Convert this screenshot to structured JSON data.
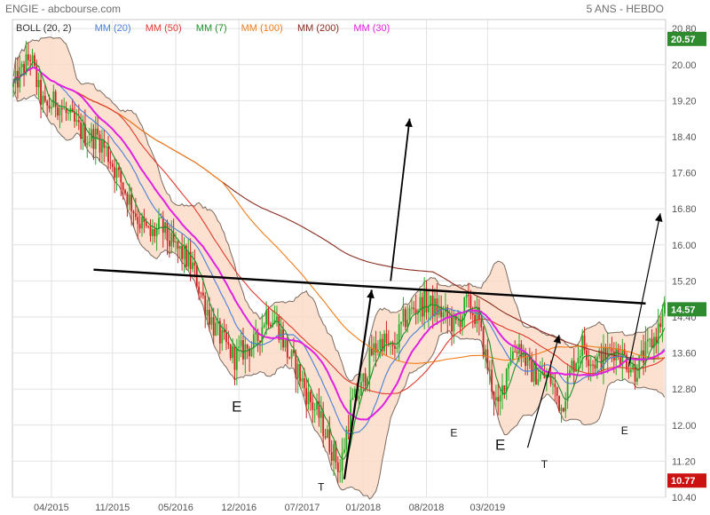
{
  "header": {
    "title": "ENGIE - abcbourse.com",
    "period": "5 ANS - HEBDO"
  },
  "legend": [
    {
      "label": "BOLL (20, 2)",
      "color": "#333333"
    },
    {
      "label": "MM (20)",
      "color": "#4a7fd6"
    },
    {
      "label": "MM (50)",
      "color": "#e0392b"
    },
    {
      "label": "MM (7)",
      "color": "#1e8f2a"
    },
    {
      "label": "MM (100)",
      "color": "#f07d1a"
    },
    {
      "label": "MM (200)",
      "color": "#8b2b1e"
    },
    {
      "label": "MM (30)",
      "color": "#e020e0"
    }
  ],
  "chart_data": {
    "type": "candlestick",
    "instrument": "ENGIE",
    "interval": "weekly",
    "ylim": [
      10.4,
      21.0
    ],
    "y_ticks": [
      20.8,
      20.0,
      19.2,
      18.4,
      17.6,
      16.8,
      16.0,
      15.2,
      14.4,
      13.6,
      12.8,
      12.0,
      11.2,
      10.4
    ],
    "y_tick_labels": [
      "20.80",
      "20.00",
      "19.20",
      "18.40",
      "17.60",
      "16.80",
      "16.00",
      "15.20",
      "14.40",
      "13.60",
      "12.80",
      "12.00",
      "11.20",
      "10.40"
    ],
    "x_tick_labels": [
      "04/2015",
      "11/2015",
      "05/2016",
      "12/2016",
      "07/2017",
      "01/2018",
      "08/2018",
      "03/2019"
    ],
    "x_tick_index": [
      18,
      47,
      77,
      107,
      137,
      166,
      196,
      225
    ],
    "last_price": "14.57",
    "last_price_color": "#2e8b2e",
    "marker_high": "20.57",
    "marker_high_color": "#2e8b2e",
    "marker_low": "10.77",
    "marker_low_color": "#cc1111",
    "bull_color": "#22aa22",
    "bear_color": "#cc2222",
    "boll_fill": "#fbd9c4",
    "annotations": [
      {
        "text": "E",
        "index": 106,
        "y": 12.3
      },
      {
        "text": "T",
        "index": 146,
        "y": 10.55
      },
      {
        "text": "E",
        "index": 209,
        "y": 11.75
      },
      {
        "text": "E",
        "index": 231,
        "y": 11.45
      },
      {
        "text": "T",
        "index": 252,
        "y": 11.05
      },
      {
        "text": "E",
        "index": 290,
        "y": 11.8
      }
    ],
    "trendlines": [
      {
        "index": [
          38,
          300
        ],
        "y": [
          15.45,
          14.7
        ],
        "color": "#000000",
        "width": 2.4,
        "arrow": false
      },
      {
        "index": [
          157,
          170
        ],
        "y": [
          10.8,
          15.0
        ],
        "color": "#000000",
        "width": 2.2,
        "arrow": true
      },
      {
        "index": [
          179,
          188
        ],
        "y": [
          15.2,
          18.8
        ],
        "color": "#000000",
        "width": 1.8,
        "arrow": true
      },
      {
        "index": [
          244,
          259
        ],
        "y": [
          11.5,
          14.0
        ],
        "color": "#000000",
        "width": 1.2,
        "arrow": true
      },
      {
        "index": [
          292,
          307
        ],
        "y": [
          13.3,
          16.7
        ],
        "color": "#000000",
        "width": 1.2,
        "arrow": true
      }
    ],
    "anchors": {
      "index": [
        0,
        8,
        12,
        15,
        20,
        25,
        30,
        35,
        40,
        45,
        50,
        55,
        60,
        65,
        70,
        75,
        80,
        85,
        90,
        95,
        100,
        105,
        110,
        115,
        120,
        125,
        130,
        135,
        140,
        145,
        150,
        155,
        160,
        165,
        170,
        175,
        180,
        185,
        190,
        195,
        200,
        205,
        210,
        215,
        220,
        225,
        230,
        235,
        240,
        245,
        250,
        255,
        260,
        265,
        270,
        275,
        280,
        285,
        290,
        295,
        300,
        305,
        309
      ],
      "close": [
        19.5,
        20.2,
        19.4,
        19.0,
        19.2,
        18.9,
        18.6,
        18.4,
        18.4,
        18.0,
        17.5,
        17.0,
        16.5,
        16.2,
        16.4,
        16.0,
        15.8,
        15.5,
        14.8,
        14.2,
        13.8,
        13.5,
        13.7,
        13.8,
        14.5,
        14.3,
        13.6,
        13.2,
        12.6,
        12.2,
        11.6,
        11.0,
        12.4,
        12.8,
        13.6,
        13.9,
        13.6,
        14.3,
        14.6,
        14.7,
        14.6,
        14.4,
        14.2,
        14.7,
        14.4,
        13.3,
        12.3,
        13.5,
        13.8,
        13.2,
        13.1,
        13.0,
        12.4,
        13.3,
        13.8,
        13.4,
        13.5,
        13.7,
        13.5,
        13.2,
        13.6,
        14.0,
        14.55
      ]
    }
  }
}
